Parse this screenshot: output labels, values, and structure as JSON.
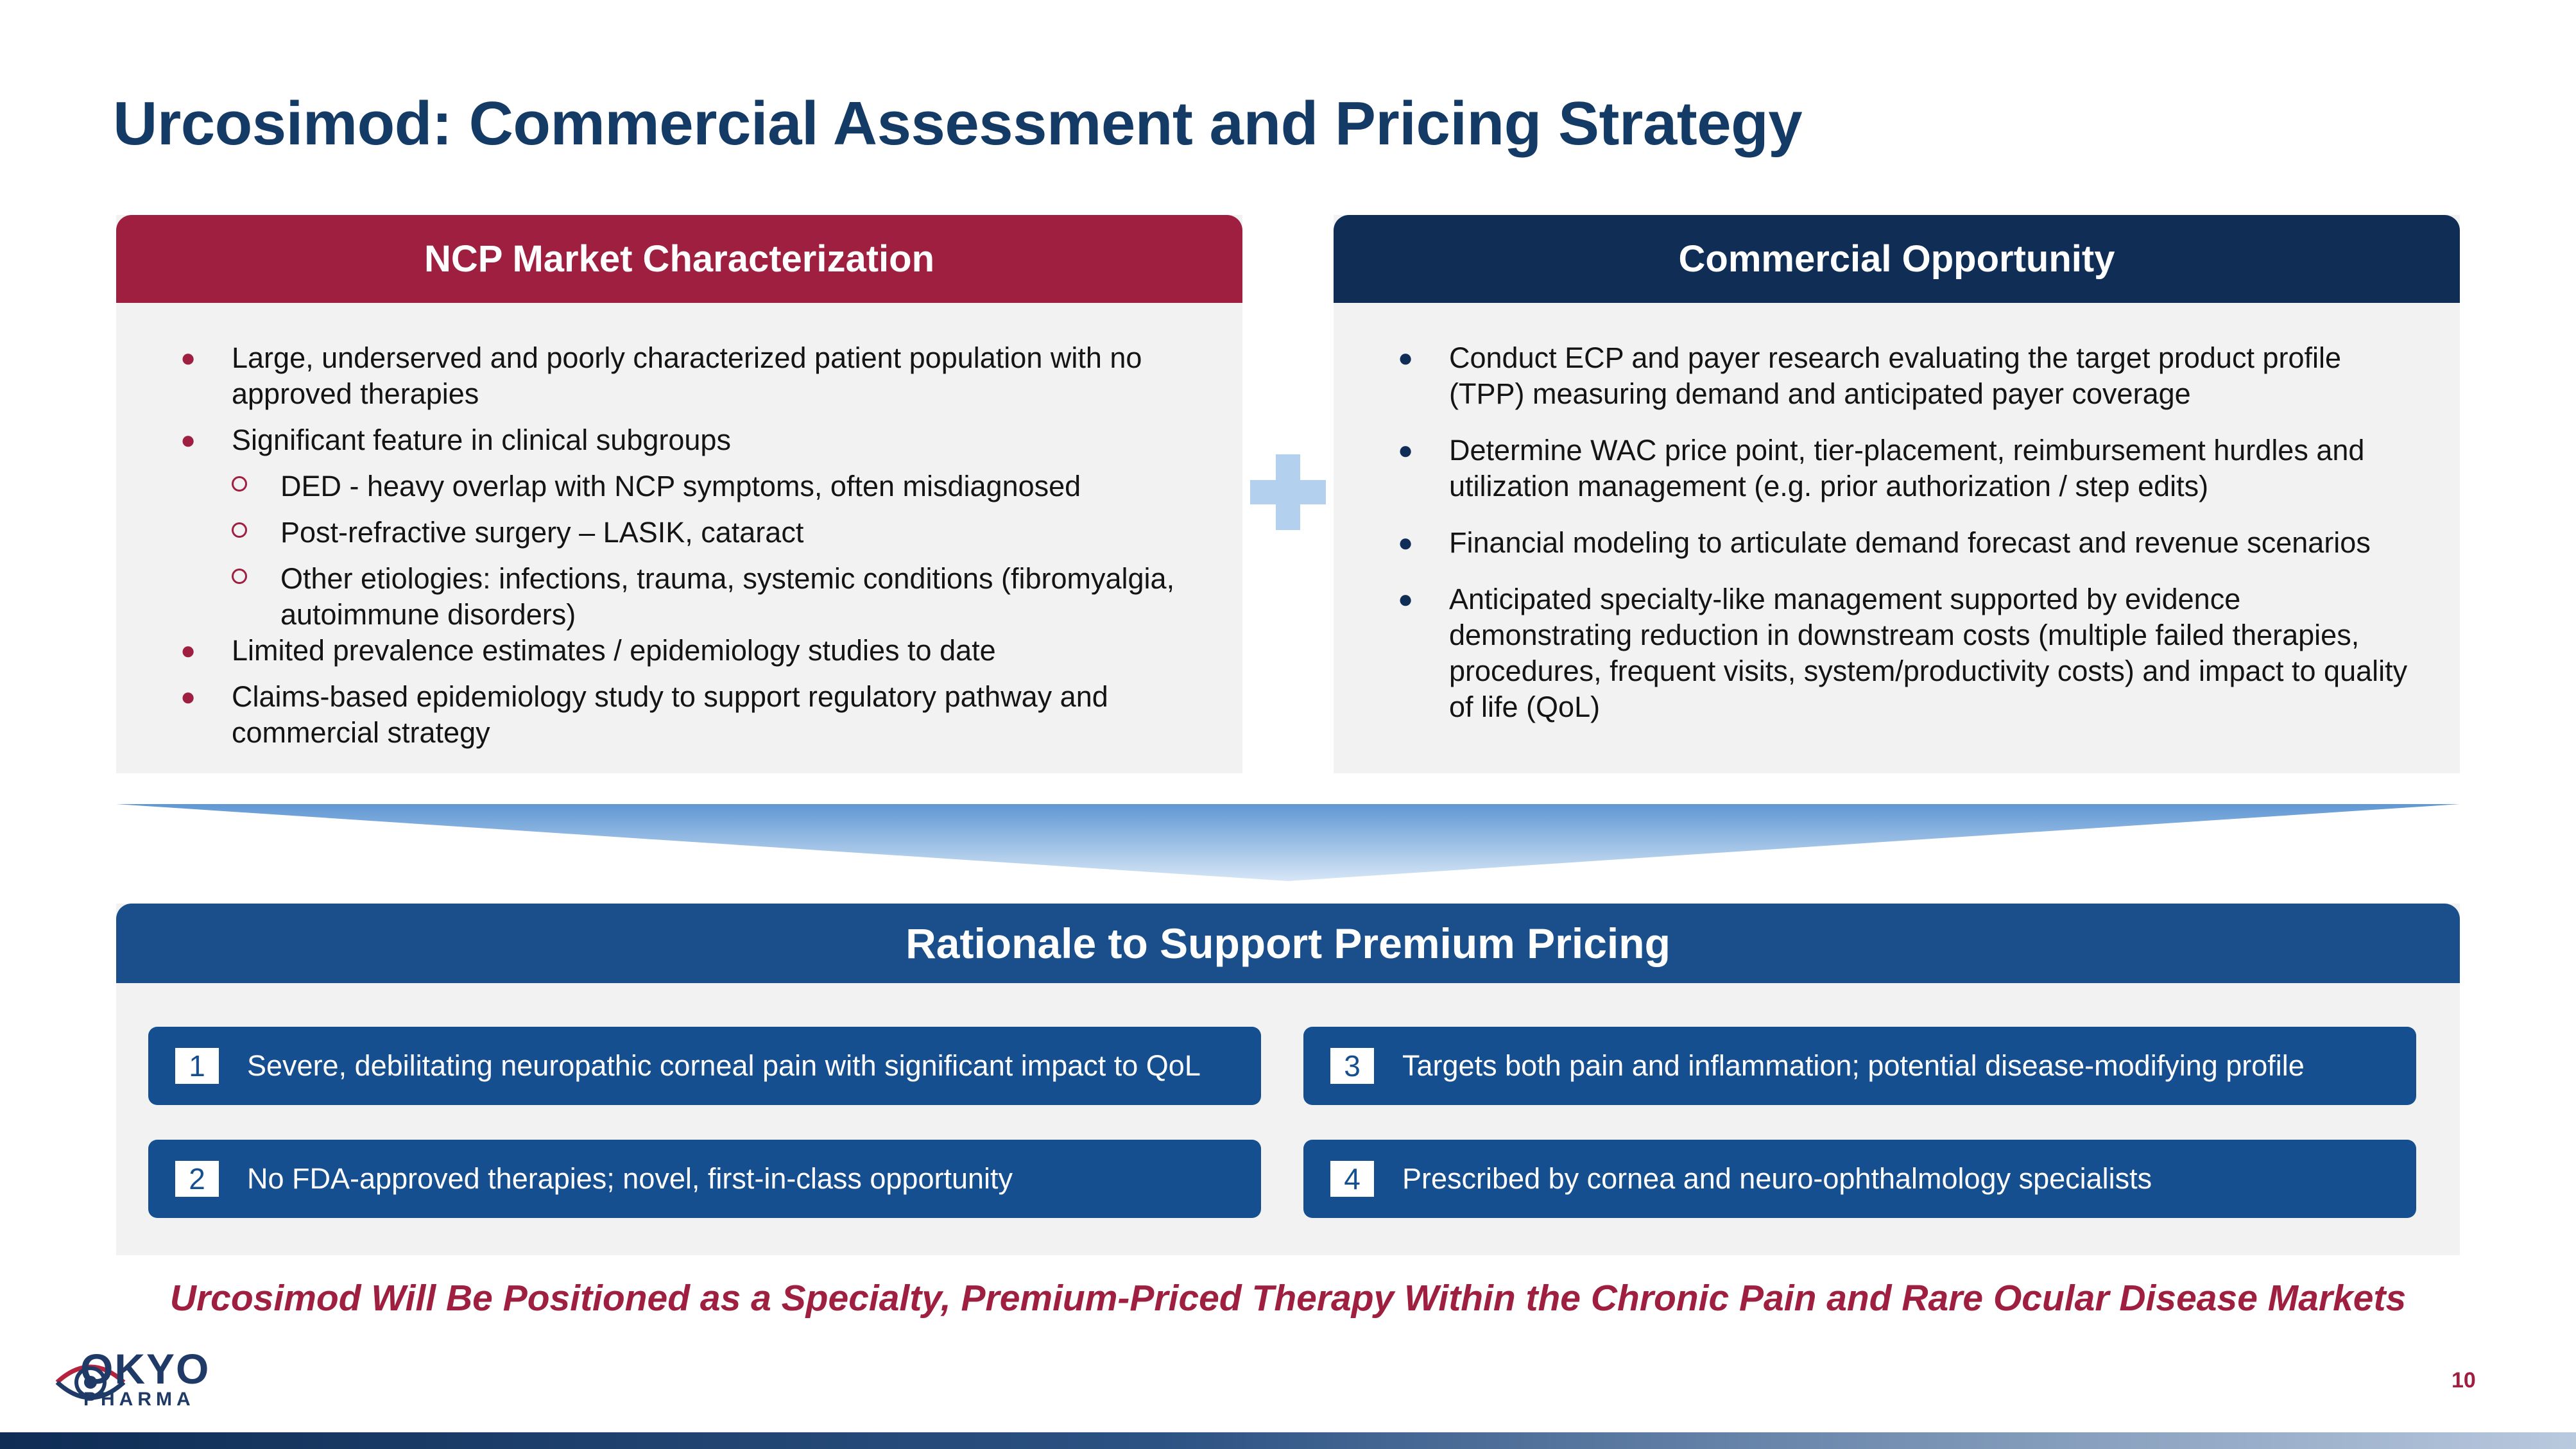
{
  "title": "Urcosimod: Commercial Assessment and Pricing Strategy",
  "left_panel": {
    "header": "NCP Market Characterization",
    "bullets": [
      {
        "text": "Large, underserved and poorly characterized patient population with no approved therapies"
      },
      {
        "text": "Significant feature in clinical subgroups",
        "sub": [
          "DED - heavy overlap with NCP symptoms, often misdiagnosed",
          "Post-refractive surgery – LASIK, cataract",
          "Other etiologies: infections, trauma, systemic conditions (fibromyalgia, autoimmune disorders)"
        ]
      },
      {
        "text": "Limited prevalence estimates / epidemiology studies to date"
      },
      {
        "text": "Claims-based epidemiology study to support regulatory pathway and commercial strategy"
      }
    ]
  },
  "right_panel": {
    "header": "Commercial Opportunity",
    "bullets": [
      "Conduct ECP and payer research evaluating the target product profile (TPP) measuring demand and anticipated payer coverage",
      "Determine WAC price point, tier-placement, reimbursement hurdles and utilization management (e.g. prior authorization / step edits)",
      "Financial modeling to articulate demand forecast and revenue scenarios",
      "Anticipated specialty-like management supported by evidence demonstrating reduction in downstream costs (multiple failed therapies, procedures, frequent visits, system/productivity costs) and impact to quality of life (QoL)"
    ]
  },
  "rationale": {
    "header": "Rationale to Support Premium Pricing",
    "items": [
      {
        "num": "1",
        "text": "Severe, debilitating neuropathic corneal pain with significant impact to QoL"
      },
      {
        "num": "2",
        "text": "No FDA-approved therapies; novel, first-in-class opportunity"
      },
      {
        "num": "3",
        "text": "Targets both pain and inflammation; potential disease-modifying profile"
      },
      {
        "num": "4",
        "text": "Prescribed by cornea and neuro-ophthalmology specialists"
      }
    ]
  },
  "tagline": "Urcosimod Will Be Positioned as a Specialty, Premium-Priced Therapy Within the Chronic Pain and Rare Ocular Disease Markets",
  "logo": {
    "word": "OKYO",
    "sub": "PHARMA"
  },
  "page_number": "10",
  "colors": {
    "title": "#143a66",
    "crimson": "#9e1f3f",
    "navy": "#0f2d55",
    "blue": "#154f90",
    "panel_bg": "#f2f2f2"
  }
}
